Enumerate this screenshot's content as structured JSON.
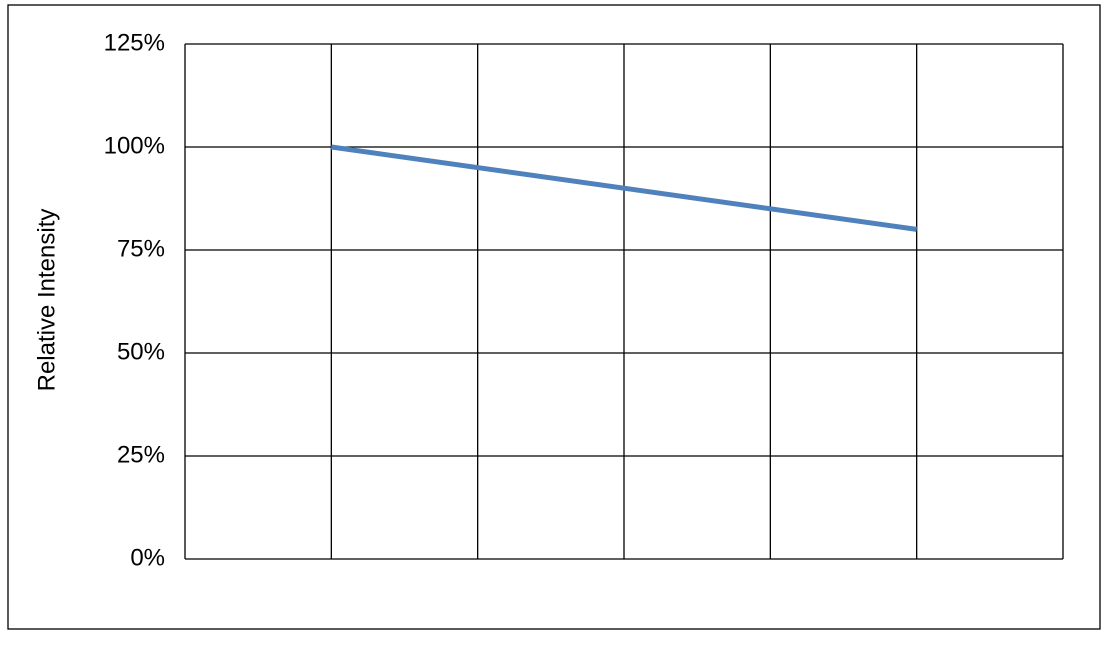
{
  "chart_data": {
    "type": "line",
    "y_label": "Relative Intensity",
    "x": [
      1,
      5
    ],
    "series": [
      {
        "name": "Relative Intensity",
        "color": "#4f81bd",
        "values": [
          100,
          80
        ]
      }
    ],
    "xlim": [
      0,
      6
    ],
    "ylim": [
      0,
      125
    ],
    "yticks": [
      {
        "value": 0,
        "label": "0%"
      },
      {
        "value": 25,
        "label": "25%"
      },
      {
        "value": 50,
        "label": "50%"
      },
      {
        "value": 75,
        "label": "75%"
      },
      {
        "value": 100,
        "label": "100%"
      },
      {
        "value": 125,
        "label": "125%"
      }
    ],
    "grid": true
  }
}
